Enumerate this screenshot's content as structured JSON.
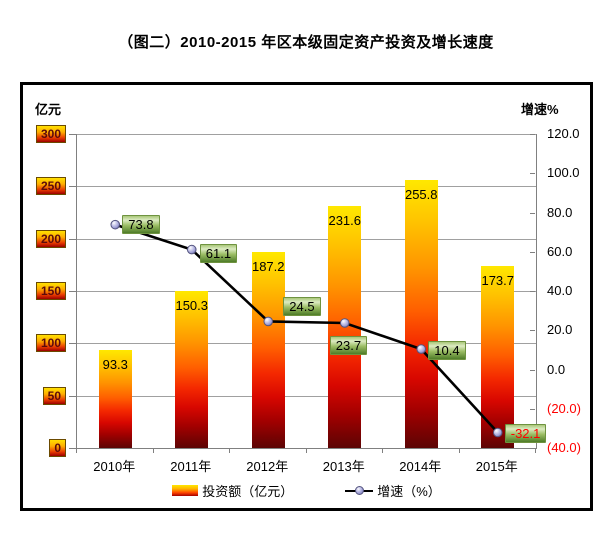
{
  "title": "（图二）2010-2015 年区本级固定资产投资及增长速度",
  "legend": {
    "bars": "投资额（亿元）",
    "line": "增速（%）",
    "position": "bottom"
  },
  "colors": {
    "bar_gradient_top": "#ffe800",
    "bar_gradient_bottom": "#5c0404",
    "line": "#000000",
    "marker_fill": "#9e9ed6",
    "point_label_bg": "#9cbe65",
    "negative_text": "#ff0000",
    "left_tick_text": "#5c0b0b",
    "axis_line": "#808080",
    "gridline": "#a0a0a0",
    "frame_border": "#000000"
  },
  "chart_data": {
    "type": "bar",
    "subtype": "combo-bar-line",
    "title": "（图二）2010-2015 年区本级固定资产投资及增长速度",
    "categories": [
      "2010年",
      "2011年",
      "2012年",
      "2013年",
      "2014年",
      "2015年"
    ],
    "series": [
      {
        "name": "投资额（亿元）",
        "type": "bar",
        "axis": "left",
        "values": [
          93.3,
          150.3,
          187.2,
          231.6,
          255.8,
          173.7
        ],
        "labels": [
          "93.3",
          "150.3",
          "187.2",
          "231.6",
          "255.8",
          "173.7"
        ]
      },
      {
        "name": "增速（%）",
        "type": "line",
        "axis": "right",
        "values": [
          73.8,
          61.1,
          24.5,
          23.7,
          10.4,
          -32.1
        ],
        "labels": [
          "73.8",
          "61.1",
          "24.5",
          "23.7",
          "10.4",
          "-32.1"
        ]
      }
    ],
    "left_axis": {
      "title": "亿元",
      "min": 0,
      "max": 300,
      "ticks": [
        {
          "value": 300,
          "label": "300"
        },
        {
          "value": 250,
          "label": "250"
        },
        {
          "value": 200,
          "label": "200"
        },
        {
          "value": 150,
          "label": "150"
        },
        {
          "value": 100,
          "label": "100"
        },
        {
          "value": 50,
          "label": "50"
        },
        {
          "value": 0,
          "label": "0"
        }
      ]
    },
    "right_axis": {
      "title": "增速%",
      "min": -40,
      "max": 120,
      "ticks": [
        {
          "value": 120,
          "label": "120.0",
          "negative": false
        },
        {
          "value": 100,
          "label": "100.0",
          "negative": false
        },
        {
          "value": 80,
          "label": "80.0",
          "negative": false
        },
        {
          "value": 60,
          "label": "60.0",
          "negative": false
        },
        {
          "value": 40,
          "label": "40.0",
          "negative": false
        },
        {
          "value": 20,
          "label": "20.0",
          "negative": false
        },
        {
          "value": 0,
          "label": "0.0",
          "negative": false
        },
        {
          "value": -20,
          "label": "(20.0)",
          "negative": true
        },
        {
          "value": -40,
          "label": "(40.0)",
          "negative": true
        }
      ]
    },
    "grid": true
  }
}
